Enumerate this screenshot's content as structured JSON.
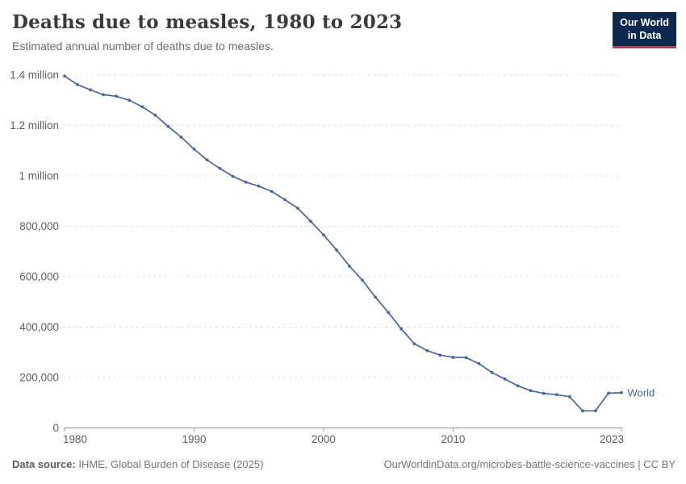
{
  "header": {
    "title": "Deaths due to measles, 1980 to 2023",
    "subtitle": "Estimated annual number of deaths due to measles."
  },
  "logo": {
    "line1": "Our World",
    "line2": "in Data",
    "background_color": "#0d2a4e",
    "accent_color": "#cf3441"
  },
  "footer": {
    "datasource_label": "Data source:",
    "datasource_value": "IHME, Global Burden of Disease (2025)",
    "credit": "OurWorldinData.org/microbes-battle-science-vaccines | CC BY"
  },
  "chart_data": {
    "type": "line",
    "title": "Deaths due to measles, 1980 to 2023",
    "subtitle": "Estimated annual number of deaths due to measles.",
    "xlabel": "",
    "ylabel": "",
    "xlim": [
      1980,
      2023
    ],
    "ylim": [
      0,
      1400000
    ],
    "grid": "horizontal-dashed",
    "legend_position": "end-of-line-label",
    "x_ticks": [
      1980,
      1990,
      2000,
      2010,
      2023
    ],
    "y_ticks": [
      {
        "value": 0,
        "label": "0"
      },
      {
        "value": 200000,
        "label": "200,000"
      },
      {
        "value": 400000,
        "label": "400,000"
      },
      {
        "value": 600000,
        "label": "600,000"
      },
      {
        "value": 800000,
        "label": "800,000"
      },
      {
        "value": 1000000,
        "label": "1 million"
      },
      {
        "value": 1200000,
        "label": "1.2 million"
      },
      {
        "value": 1400000,
        "label": "1.4 million"
      }
    ],
    "x": [
      1980,
      1981,
      1982,
      1983,
      1984,
      1985,
      1986,
      1987,
      1988,
      1989,
      1990,
      1991,
      1992,
      1993,
      1994,
      1995,
      1996,
      1997,
      1998,
      1999,
      2000,
      2001,
      2002,
      2003,
      2004,
      2005,
      2006,
      2007,
      2008,
      2009,
      2010,
      2011,
      2012,
      2013,
      2014,
      2015,
      2016,
      2017,
      2018,
      2019,
      2020,
      2021,
      2022,
      2023
    ],
    "series": [
      {
        "name": "World",
        "color": "#4665a3",
        "values": [
          1396000,
          1362000,
          1341000,
          1322000,
          1316000,
          1300000,
          1274000,
          1241000,
          1196000,
          1154000,
          1106000,
          1063000,
          1029000,
          998000,
          975000,
          959000,
          938000,
          906000,
          872000,
          820000,
          766000,
          706000,
          642000,
          586000,
          519000,
          458000,
          393000,
          334000,
          307000,
          289000,
          280000,
          279000,
          255000,
          220000,
          194000,
          167000,
          148000,
          137000,
          132000,
          124000,
          68000,
          68000,
          138000,
          140000
        ]
      }
    ],
    "axis_color": "#9a9a9a",
    "gridline_color": "#dcdcdc",
    "tick_label_color": "#5e5e5e"
  }
}
